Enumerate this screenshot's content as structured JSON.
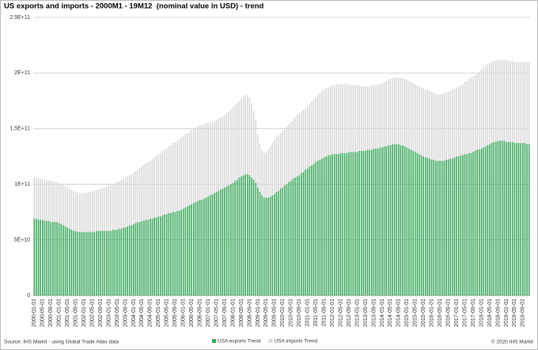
{
  "chart_data": {
    "type": "bar",
    "title": "US exports and imports - 2000M1 - 19M12  (nominal value in USD) - trend",
    "source": "Source: IHS Markit - using Global Trade Atlas data",
    "copyright": "© 2020 IHS Markit",
    "categories": [
      "2000-01-01",
      null,
      null,
      null,
      "2000-05-01",
      null,
      null,
      null,
      "2000-09-01",
      null,
      null,
      null,
      "2001-01-01",
      null,
      null,
      null,
      "2001-05-01",
      null,
      null,
      null,
      "2001-09-01",
      null,
      null,
      null,
      "2002-01-01",
      null,
      null,
      null,
      "2002-05-01",
      null,
      null,
      null,
      "2002-09-01",
      null,
      null,
      null,
      "2003-01-01",
      null,
      null,
      null,
      "2003-05-01",
      null,
      null,
      null,
      "2003-09-01",
      null,
      null,
      null,
      "2004-01-01",
      null,
      null,
      null,
      "2004-05-01",
      null,
      null,
      null,
      "2004-09-01",
      null,
      null,
      null,
      "2005-01-01",
      null,
      null,
      null,
      "2005-05-01",
      null,
      null,
      null,
      "2005-09-01",
      null,
      null,
      null,
      "2006-01-01",
      null,
      null,
      null,
      "2006-05-01",
      null,
      null,
      null,
      "2006-09-01",
      null,
      null,
      null,
      "2007-01-01",
      null,
      null,
      null,
      "2007-05-01",
      null,
      null,
      null,
      "2007-09-01",
      null,
      null,
      null,
      "2008-01-01",
      null,
      null,
      null,
      "2008-05-01",
      null,
      null,
      null,
      "2008-09-01",
      null,
      null,
      null,
      "2009-01-01",
      null,
      null,
      null,
      "2009-05-01",
      null,
      null,
      null,
      "2009-09-01",
      null,
      null,
      null,
      "2010-01-01",
      null,
      null,
      null,
      "2010-05-01",
      null,
      null,
      null,
      "2010-09-01",
      null,
      null,
      null,
      "2011-01-01",
      null,
      null,
      null,
      "2011-05-01",
      null,
      null,
      null,
      "2011-09-01",
      null,
      null,
      null,
      "2012-01-01",
      null,
      null,
      null,
      "2012-05-01",
      null,
      null,
      null,
      "2012-09-01",
      null,
      null,
      null,
      "2013-01-01",
      null,
      null,
      null,
      "2013-05-01",
      null,
      null,
      null,
      "2013-09-01",
      null,
      null,
      null,
      "2014-01-01",
      null,
      null,
      null,
      "2014-05-01",
      null,
      null,
      null,
      "2014-09-01",
      null,
      null,
      null,
      "2015-01-01",
      null,
      null,
      null,
      "2015-05-01",
      null,
      null,
      null,
      "2015-09-01",
      null,
      null,
      null,
      "2016-01-01",
      null,
      null,
      null,
      "2016-05-01",
      null,
      null,
      null,
      "2016-09-01",
      null,
      null,
      null,
      "2017-01-01",
      null,
      null,
      null,
      "2017-05-01",
      null,
      null,
      null,
      "2017-09-01",
      null,
      null,
      null,
      "2018-01-01",
      null,
      null,
      null,
      "2018-05-01",
      null,
      null,
      null,
      "2018-09-01",
      null,
      null,
      null,
      "2019-01-01",
      null,
      null,
      null,
      "2019-05-01",
      null,
      null,
      null,
      "2019-09-01",
      null,
      null,
      null
    ],
    "series": [
      {
        "name": "USA imports Trend",
        "color": "#d9d9d9",
        "values": [
          106000000000.0,
          106000000000.0,
          105000000000.0,
          105000000000.0,
          104000000000.0,
          104000000000.0,
          104000000000.0,
          103000000000.0,
          103000000000.0,
          103000000000.0,
          102000000000.0,
          102000000000.0,
          101000000000.0,
          100000000000.0,
          99000000000.0,
          98000000000.0,
          97000000000.0,
          96000000000.0,
          95000000000.0,
          94000000000.0,
          93000000000.0,
          93000000000.0,
          92000000000.0,
          92000000000.0,
          92000000000.0,
          92000000000.0,
          93000000000.0,
          93000000000.0,
          94000000000.0,
          94000000000.0,
          95000000000.0,
          95000000000.0,
          96000000000.0,
          96000000000.0,
          97000000000.0,
          98000000000.0,
          99000000000.0,
          99000000000.0,
          100000000000.0,
          101000000000.0,
          102000000000.0,
          103000000000.0,
          104000000000.0,
          105000000000.0,
          106000000000.0,
          107000000000.0,
          108000000000.0,
          109000000000.0,
          110000000000.0,
          112000000000.0,
          113000000000.0,
          115000000000.0,
          116000000000.0,
          118000000000.0,
          119000000000.0,
          120000000000.0,
          121000000000.0,
          123000000000.0,
          124000000000.0,
          126000000000.0,
          127000000000.0,
          128000000000.0,
          130000000000.0,
          131000000000.0,
          132000000000.0,
          134000000000.0,
          135000000000.0,
          137000000000.0,
          138000000000.0,
          139000000000.0,
          140000000000.0,
          142000000000.0,
          143000000000.0,
          145000000000.0,
          146000000000.0,
          147000000000.0,
          149000000000.0,
          150000000000.0,
          151000000000.0,
          152000000000.0,
          153000000000.0,
          153000000000.0,
          154000000000.0,
          155000000000.0,
          155000000000.0,
          156000000000.0,
          156000000000.0,
          157000000000.0,
          158000000000.0,
          159000000000.0,
          160000000000.0,
          161000000000.0,
          162000000000.0,
          164000000000.0,
          165000000000.0,
          167000000000.0,
          169000000000.0,
          171000000000.0,
          173000000000.0,
          175000000000.0,
          177000000000.0,
          179000000000.0,
          180000000000.0,
          180000000000.0,
          178000000000.0,
          173000000000.0,
          166000000000.0,
          158000000000.0,
          145000000000.0,
          136000000000.0,
          131000000000.0,
          128000000000.0,
          129000000000.0,
          131000000000.0,
          134000000000.0,
          137000000000.0,
          140000000000.0,
          142000000000.0,
          144000000000.0,
          146000000000.0,
          148000000000.0,
          150000000000.0,
          152000000000.0,
          154000000000.0,
          156000000000.0,
          158000000000.0,
          160000000000.0,
          162000000000.0,
          164000000000.0,
          165000000000.0,
          167000000000.0,
          168000000000.0,
          170000000000.0,
          172000000000.0,
          174000000000.0,
          176000000000.0,
          178000000000.0,
          180000000000.0,
          182000000000.0,
          184000000000.0,
          185000000000.0,
          186000000000.0,
          187000000000.0,
          188000000000.0,
          189000000000.0,
          189000000000.0,
          190000000000.0,
          190000000000.0,
          190000000000.0,
          190000000000.0,
          190000000000.0,
          190000000000.0,
          190000000000.0,
          189000000000.0,
          189000000000.0,
          189000000000.0,
          189000000000.0,
          189000000000.0,
          188000000000.0,
          188000000000.0,
          188000000000.0,
          188000000000.0,
          188000000000.0,
          189000000000.0,
          189000000000.0,
          189000000000.0,
          190000000000.0,
          190000000000.0,
          191000000000.0,
          192000000000.0,
          193000000000.0,
          194000000000.0,
          195000000000.0,
          195000000000.0,
          196000000000.0,
          196000000000.0,
          196000000000.0,
          196000000000.0,
          195000000000.0,
          195000000000.0,
          194000000000.0,
          193000000000.0,
          192000000000.0,
          191000000000.0,
          190000000000.0,
          189000000000.0,
          188000000000.0,
          187000000000.0,
          186000000000.0,
          185000000000.0,
          185000000000.0,
          184000000000.0,
          183000000000.0,
          182000000000.0,
          181000000000.0,
          181000000000.0,
          181000000000.0,
          181000000000.0,
          182000000000.0,
          182000000000.0,
          183000000000.0,
          184000000000.0,
          185000000000.0,
          186000000000.0,
          187000000000.0,
          188000000000.0,
          189000000000.0,
          190000000000.0,
          192000000000.0,
          193000000000.0,
          195000000000.0,
          196000000000.0,
          197000000000.0,
          198000000000.0,
          199000000000.0,
          201000000000.0,
          203000000000.0,
          205000000000.0,
          206000000000.0,
          208000000000.0,
          209000000000.0,
          210000000000.0,
          211000000000.0,
          211000000000.0,
          212000000000.0,
          212000000000.0,
          212000000000.0,
          212000000000.0,
          212000000000.0,
          211000000000.0,
          211000000000.0,
          211000000000.0,
          210000000000.0,
          210000000000.0,
          210000000000.0,
          210000000000.0,
          210000000000.0,
          210000000000.0,
          210000000000.0,
          210000000000.0
        ]
      },
      {
        "name": "USA exports Trend",
        "color": "#3aaa5c",
        "values": [
          69000000000.0,
          69000000000.0,
          68000000000.0,
          68000000000.0,
          68000000000.0,
          67000000000.0,
          67000000000.0,
          67000000000.0,
          66000000000.0,
          66000000000.0,
          66000000000.0,
          66000000000.0,
          65000000000.0,
          64000000000.0,
          63000000000.0,
          62000000000.0,
          61000000000.0,
          60000000000.0,
          59000000000.0,
          58000000000.0,
          58000000000.0,
          57000000000.0,
          57000000000.0,
          57000000000.0,
          57000000000.0,
          57000000000.0,
          57000000000.0,
          57000000000.0,
          57000000000.0,
          57000000000.0,
          58000000000.0,
          58000000000.0,
          58000000000.0,
          58000000000.0,
          58000000000.0,
          58000000000.0,
          58000000000.0,
          58000000000.0,
          59000000000.0,
          59000000000.0,
          59000000000.0,
          60000000000.0,
          60000000000.0,
          61000000000.0,
          61000000000.0,
          62000000000.0,
          63000000000.0,
          63000000000.0,
          64000000000.0,
          65000000000.0,
          66000000000.0,
          66000000000.0,
          67000000000.0,
          67000000000.0,
          68000000000.0,
          68000000000.0,
          69000000000.0,
          69000000000.0,
          70000000000.0,
          70000000000.0,
          71000000000.0,
          71000000000.0,
          72000000000.0,
          73000000000.0,
          73000000000.0,
          74000000000.0,
          74000000000.0,
          75000000000.0,
          75000000000.0,
          76000000000.0,
          76000000000.0,
          77000000000.0,
          78000000000.0,
          79000000000.0,
          80000000000.0,
          81000000000.0,
          82000000000.0,
          83000000000.0,
          84000000000.0,
          85000000000.0,
          86000000000.0,
          86000000000.0,
          87000000000.0,
          88000000000.0,
          89000000000.0,
          90000000000.0,
          91000000000.0,
          92000000000.0,
          93000000000.0,
          94000000000.0,
          95000000000.0,
          96000000000.0,
          97000000000.0,
          98000000000.0,
          99000000000.0,
          100000000000.0,
          101000000000.0,
          103000000000.0,
          104000000000.0,
          106000000000.0,
          107000000000.0,
          108000000000.0,
          109000000000.0,
          109000000000.0,
          108000000000.0,
          106000000000.0,
          104000000000.0,
          101000000000.0,
          97000000000.0,
          93000000000.0,
          90000000000.0,
          88000000000.0,
          88000000000.0,
          88000000000.0,
          89000000000.0,
          90000000000.0,
          91000000000.0,
          93000000000.0,
          94000000000.0,
          96000000000.0,
          97000000000.0,
          99000000000.0,
          100000000000.0,
          102000000000.0,
          103000000000.0,
          105000000000.0,
          106000000000.0,
          107000000000.0,
          108000000000.0,
          110000000000.0,
          111000000000.0,
          113000000000.0,
          114000000000.0,
          116000000000.0,
          117000000000.0,
          118000000000.0,
          120000000000.0,
          121000000000.0,
          122000000000.0,
          123000000000.0,
          124000000000.0,
          125000000000.0,
          126000000000.0,
          126000000000.0,
          127000000000.0,
          127000000000.0,
          127000000000.0,
          127000000000.0,
          128000000000.0,
          128000000000.0,
          128000000000.0,
          128000000000.0,
          129000000000.0,
          129000000000.0,
          129000000000.0,
          129000000000.0,
          129000000000.0,
          130000000000.0,
          130000000000.0,
          130000000000.0,
          130000000000.0,
          131000000000.0,
          131000000000.0,
          131000000000.0,
          132000000000.0,
          132000000000.0,
          132000000000.0,
          133000000000.0,
          133000000000.0,
          134000000000.0,
          134000000000.0,
          135000000000.0,
          135000000000.0,
          136000000000.0,
          136000000000.0,
          136000000000.0,
          136000000000.0,
          135000000000.0,
          135000000000.0,
          134000000000.0,
          133000000000.0,
          132000000000.0,
          131000000000.0,
          130000000000.0,
          129000000000.0,
          128000000000.0,
          127000000000.0,
          126000000000.0,
          125000000000.0,
          124000000000.0,
          124000000000.0,
          123000000000.0,
          122000000000.0,
          122000000000.0,
          121000000000.0,
          121000000000.0,
          121000000000.0,
          121000000000.0,
          121000000000.0,
          122000000000.0,
          122000000000.0,
          123000000000.0,
          123000000000.0,
          124000000000.0,
          125000000000.0,
          125000000000.0,
          126000000000.0,
          126000000000.0,
          127000000000.0,
          127000000000.0,
          128000000000.0,
          128000000000.0,
          129000000000.0,
          130000000000.0,
          131000000000.0,
          131000000000.0,
          132000000000.0,
          133000000000.0,
          134000000000.0,
          135000000000.0,
          136000000000.0,
          137000000000.0,
          138000000000.0,
          138000000000.0,
          139000000000.0,
          139000000000.0,
          139000000000.0,
          139000000000.0,
          138000000000.0,
          138000000000.0,
          138000000000.0,
          138000000000.0,
          137000000000.0,
          137000000000.0,
          137000000000.0,
          137000000000.0,
          137000000000.0,
          137000000000.0,
          136000000000.0,
          136000000000.0
        ]
      }
    ],
    "ylim": [
      0,
      250000000000.0
    ],
    "yticks": [
      0,
      {
        "value": 50000000000.0,
        "label": "5E+10"
      },
      {
        "value": 100000000000.0,
        "label": "1E+11"
      },
      {
        "value": 150000000000.0,
        "label": "1.5E+11"
      },
      {
        "value": 200000000000.0,
        "label": "2E+11"
      },
      {
        "value": 250000000000.0,
        "label": "2.5E+11"
      }
    ],
    "grid": true
  }
}
